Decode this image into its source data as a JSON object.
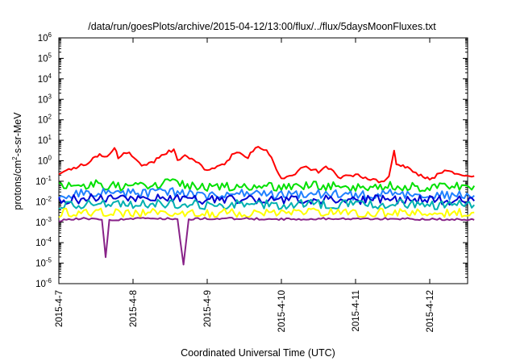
{
  "chart_data": {
    "type": "line",
    "title": "/data/run/goesPlots/archive/2015-04-12/13:00/flux/../flux/5daysMoonFluxes.txt",
    "xlabel": "Coordinated Universal Time (UTC)",
    "ylabel": "protons/cm2-s-sr-MeV",
    "ylabel_parts": {
      "before": "protons/cm",
      "sup": "2",
      "after": "-s-sr-MeV"
    },
    "y_scale": "log",
    "ylim": [
      1e-06,
      1000000.0
    ],
    "y_ticks": [
      {
        "base": "10",
        "exp": "-6",
        "value": 1e-06
      },
      {
        "base": "10",
        "exp": "-5",
        "value": 1e-05
      },
      {
        "base": "10",
        "exp": "-4",
        "value": 0.0001
      },
      {
        "base": "10",
        "exp": "-3",
        "value": 0.001
      },
      {
        "base": "10",
        "exp": "-2",
        "value": 0.01
      },
      {
        "base": "10",
        "exp": "-1",
        "value": 0.1
      },
      {
        "base": "10",
        "exp": "0",
        "value": 1
      },
      {
        "base": "10",
        "exp": "1",
        "value": 10.0
      },
      {
        "base": "10",
        "exp": "2",
        "value": 100.0
      },
      {
        "base": "10",
        "exp": "3",
        "value": 1000.0
      },
      {
        "base": "10",
        "exp": "4",
        "value": 10000.0
      },
      {
        "base": "10",
        "exp": "5",
        "value": 100000.0
      },
      {
        "base": "10",
        "exp": "6",
        "value": 1000000.0
      }
    ],
    "x_ticks": [
      "2015-4-7",
      "2015-4-8",
      "2015-4-9",
      "2015-4-10",
      "2015-4-11",
      "2015-4-12"
    ],
    "x_range_days": [
      0,
      5.6
    ],
    "grid": false,
    "legend": "none",
    "series": [
      {
        "color": "#ff0000",
        "values": [
          [
            0.0,
            0.25
          ],
          [
            0.2,
            0.45
          ],
          [
            0.4,
            0.8
          ],
          [
            0.55,
            2.2
          ],
          [
            0.65,
            1.5
          ],
          [
            0.75,
            4.5
          ],
          [
            0.8,
            1.5
          ],
          [
            0.95,
            3.0
          ],
          [
            1.05,
            0.9
          ],
          [
            1.15,
            0.6
          ],
          [
            1.25,
            0.8
          ],
          [
            1.45,
            2.5
          ],
          [
            1.55,
            3.5
          ],
          [
            1.6,
            1.0
          ],
          [
            1.7,
            1.8
          ],
          [
            1.85,
            1.0
          ],
          [
            2.0,
            0.3
          ],
          [
            2.2,
            0.6
          ],
          [
            2.4,
            3.0
          ],
          [
            2.55,
            1.5
          ],
          [
            2.65,
            5.0
          ],
          [
            2.8,
            3.5
          ],
          [
            2.9,
            0.8
          ],
          [
            3.0,
            0.12
          ],
          [
            3.15,
            0.2
          ],
          [
            3.3,
            0.5
          ],
          [
            3.5,
            0.3
          ],
          [
            3.6,
            0.5
          ],
          [
            3.8,
            0.15
          ],
          [
            4.0,
            0.2
          ],
          [
            4.2,
            0.12
          ],
          [
            4.35,
            0.1
          ],
          [
            4.45,
            0.15
          ],
          [
            4.52,
            2.8
          ],
          [
            4.55,
            0.7
          ],
          [
            4.7,
            0.5
          ],
          [
            4.85,
            0.2
          ],
          [
            5.0,
            0.13
          ],
          [
            5.2,
            0.3
          ],
          [
            5.4,
            0.2
          ],
          [
            5.6,
            0.18
          ]
        ]
      },
      {
        "color": "#00e000",
        "values": [
          [
            0.0,
            0.05
          ],
          [
            0.5,
            0.07
          ],
          [
            1.0,
            0.05
          ],
          [
            1.5,
            0.08
          ],
          [
            2.0,
            0.05
          ],
          [
            2.5,
            0.06
          ],
          [
            3.0,
            0.05
          ],
          [
            3.5,
            0.06
          ],
          [
            4.0,
            0.05
          ],
          [
            4.5,
            0.06
          ],
          [
            5.0,
            0.05
          ],
          [
            5.6,
            0.06
          ]
        ]
      },
      {
        "color": "#2080ff",
        "values": [
          [
            0.0,
            0.02
          ],
          [
            0.5,
            0.03
          ],
          [
            1.0,
            0.025
          ],
          [
            1.5,
            0.03
          ],
          [
            2.0,
            0.02
          ],
          [
            2.5,
            0.025
          ],
          [
            3.0,
            0.02
          ],
          [
            3.5,
            0.025
          ],
          [
            4.0,
            0.02
          ],
          [
            4.5,
            0.025
          ],
          [
            5.0,
            0.02
          ],
          [
            5.6,
            0.02
          ]
        ]
      },
      {
        "color": "#0000d0",
        "values": [
          [
            0.0,
            0.012
          ],
          [
            0.5,
            0.015
          ],
          [
            1.0,
            0.012
          ],
          [
            1.5,
            0.015
          ],
          [
            2.0,
            0.012
          ],
          [
            2.5,
            0.013
          ],
          [
            3.0,
            0.012
          ],
          [
            3.5,
            0.013
          ],
          [
            4.0,
            0.012
          ],
          [
            4.5,
            0.013
          ],
          [
            5.0,
            0.012
          ],
          [
            5.6,
            0.011
          ]
        ]
      },
      {
        "color": "#00b0b0",
        "values": [
          [
            0.0,
            0.007
          ],
          [
            0.5,
            0.008
          ],
          [
            1.0,
            0.007
          ],
          [
            1.5,
            0.008
          ],
          [
            2.0,
            0.007
          ],
          [
            2.5,
            0.008
          ],
          [
            3.0,
            0.007
          ],
          [
            3.5,
            0.008
          ],
          [
            4.0,
            0.007
          ],
          [
            4.5,
            0.008
          ],
          [
            5.0,
            0.007
          ],
          [
            5.6,
            0.007
          ]
        ]
      },
      {
        "color": "#ffff00",
        "values": [
          [
            0.0,
            0.0028
          ],
          [
            0.5,
            0.003
          ],
          [
            1.0,
            0.0028
          ],
          [
            1.5,
            0.003
          ],
          [
            2.0,
            0.0028
          ],
          [
            2.5,
            0.003
          ],
          [
            3.0,
            0.0028
          ],
          [
            3.5,
            0.003
          ],
          [
            4.0,
            0.0028
          ],
          [
            4.5,
            0.003
          ],
          [
            5.0,
            0.0028
          ],
          [
            5.6,
            0.003
          ]
        ]
      },
      {
        "color": "#882288",
        "values": [
          [
            0.0,
            0.0012
          ],
          [
            0.3,
            0.0015
          ],
          [
            0.58,
            0.0014
          ],
          [
            0.63,
            2e-05
          ],
          [
            0.68,
            0.0013
          ],
          [
            1.0,
            0.0015
          ],
          [
            1.5,
            0.0015
          ],
          [
            1.6,
            0.0014
          ],
          [
            1.68,
            9e-06
          ],
          [
            1.75,
            0.0014
          ],
          [
            2.0,
            0.0015
          ],
          [
            2.5,
            0.0015
          ],
          [
            3.0,
            0.0014
          ],
          [
            3.5,
            0.0015
          ],
          [
            4.0,
            0.0014
          ],
          [
            4.5,
            0.0015
          ],
          [
            5.0,
            0.0014
          ],
          [
            5.6,
            0.0013
          ]
        ]
      }
    ]
  }
}
